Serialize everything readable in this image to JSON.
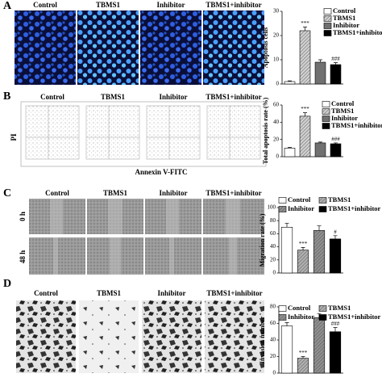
{
  "panels": [
    {
      "letter": "A",
      "image_labels": [
        "Control",
        "TBMS1",
        "Inhibitor",
        "TBMS1+inhibitor"
      ]
    },
    {
      "letter": "B",
      "image_labels": [
        "Control",
        "TBMS1",
        "Inhibitor",
        "TBMS1+inhibitor"
      ],
      "y_axis": "PI",
      "x_axis": "Annexin V-FITC"
    },
    {
      "letter": "C",
      "image_labels": [
        "Control",
        "TBMS1",
        "Inhibitor",
        "TBMS1+inhibitor"
      ],
      "row_labels": [
        "0 h",
        "48 h"
      ]
    },
    {
      "letter": "D",
      "image_labels": [
        "Control",
        "TBMS1",
        "Inhibitor",
        "TBMS1+inhibitor"
      ]
    }
  ],
  "chart_data": [
    {
      "type": "bar",
      "y_label": "Apoptosis cells",
      "categories": [
        "Control",
        "TBMS1",
        "Inhibitor",
        "TBMS1+inhibitor"
      ],
      "values": [
        1,
        22,
        9,
        8
      ],
      "errors": [
        0.3,
        1.5,
        1,
        0.8
      ],
      "annotations": [
        null,
        "***",
        null,
        "###"
      ],
      "colors": [
        "#ffffff",
        "#d0d0d0",
        "#707070",
        "#000000"
      ],
      "patterns": [
        "solid",
        "hatch",
        "solid",
        "solid"
      ],
      "ylim": [
        0,
        30
      ],
      "yticks": [
        0,
        10,
        20,
        30
      ],
      "legend": "column"
    },
    {
      "type": "bar",
      "y_label": "Total apoptosis rate (%)",
      "categories": [
        "Control",
        "TBMS1",
        "Inhibitor",
        "TBMS1+inhibitor"
      ],
      "values": [
        10,
        47,
        16,
        15
      ],
      "errors": [
        0.8,
        4,
        1,
        1
      ],
      "annotations": [
        null,
        "***",
        null,
        "###"
      ],
      "colors": [
        "#ffffff",
        "#d0d0d0",
        "#707070",
        "#000000"
      ],
      "patterns": [
        "solid",
        "hatch",
        "solid",
        "solid"
      ],
      "ylim": [
        0,
        60
      ],
      "yticks": [
        0,
        20,
        40,
        60
      ],
      "legend": "column"
    },
    {
      "type": "bar",
      "y_label": "Migration rate (%)",
      "categories": [
        "Control",
        "TBMS1",
        "Inhibitor",
        "TBMS1+inhibitor"
      ],
      "values": [
        70,
        35,
        65,
        52
      ],
      "errors": [
        6,
        4,
        7,
        5
      ],
      "annotations": [
        null,
        "***",
        null,
        "#"
      ],
      "colors": [
        "#ffffff",
        "#b0b0b0",
        "#909090",
        "#000000"
      ],
      "patterns": [
        "solid",
        "hatch",
        "hatch",
        "solid"
      ],
      "ylim": [
        0,
        100
      ],
      "yticks": [
        0,
        20,
        40,
        60,
        80,
        100
      ],
      "legend": "grid"
    },
    {
      "type": "bar",
      "y_label": "Invasion number",
      "categories": [
        "Control",
        "TBMS1",
        "Inhibitor",
        "TBMS1+inhibitor"
      ],
      "values": [
        57,
        18,
        67,
        50
      ],
      "errors": [
        4,
        2,
        5,
        5
      ],
      "annotations": [
        null,
        "***",
        null,
        "###"
      ],
      "colors": [
        "#ffffff",
        "#b0b0b0",
        "#909090",
        "#000000"
      ],
      "patterns": [
        "solid",
        "hatch",
        "hatch",
        "solid"
      ],
      "ylim": [
        0,
        80
      ],
      "yticks": [
        0,
        20,
        40,
        60,
        80
      ],
      "legend": "grid"
    }
  ]
}
